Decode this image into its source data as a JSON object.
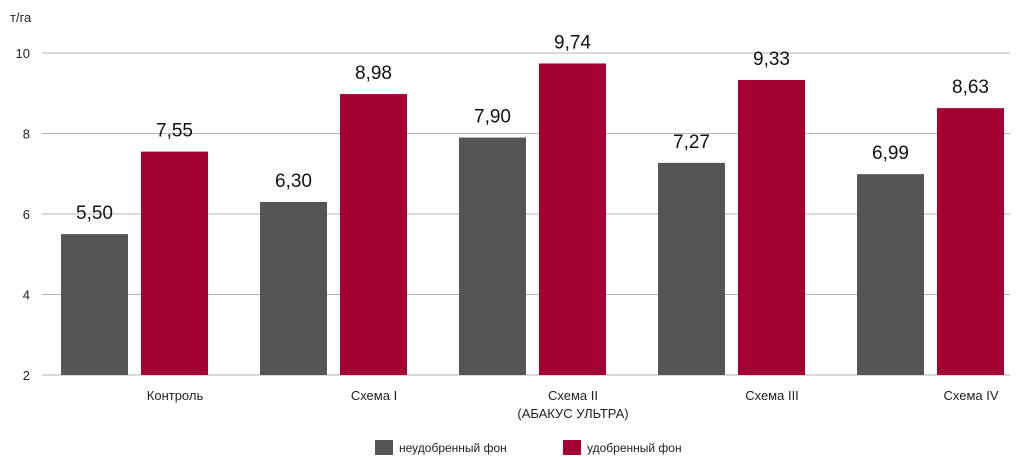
{
  "chart_data": {
    "type": "bar",
    "y_unit": "т/га",
    "ylim": [
      2,
      10
    ],
    "yticks": [
      2,
      4,
      6,
      8,
      10
    ],
    "grid": true,
    "legend_position": "bottom-center",
    "categories": [
      [
        "Контроль"
      ],
      [
        "Схема I"
      ],
      [
        "Схема II",
        "(АБАКУС УЛЬТРА)"
      ],
      [
        "Схема III"
      ],
      [
        "Схема IV"
      ]
    ],
    "series": [
      {
        "name": "неудобренный фон",
        "color": "#555555",
        "values": [
          5.5,
          6.3,
          7.9,
          7.27,
          6.99
        ],
        "labels": [
          "5,50",
          "6,30",
          "7,90",
          "7,27",
          "6,99"
        ]
      },
      {
        "name": "удобренный фон",
        "color": "#a50034",
        "values": [
          7.55,
          8.98,
          9.74,
          9.33,
          8.63
        ],
        "labels": [
          "7,55",
          "8,98",
          "9,74",
          "9,33",
          "8,63"
        ]
      }
    ]
  }
}
